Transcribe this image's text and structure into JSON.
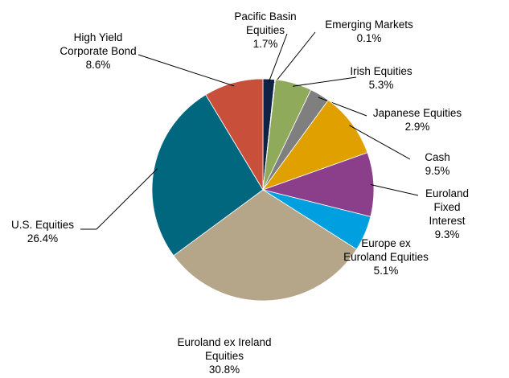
{
  "chart_data": {
    "type": "pie",
    "categories": [
      "Pacific Basin\nEquities",
      "Emerging Markets",
      "Irish Equities",
      "Japanese Equities",
      "Cash",
      "Euroland Fixed\nInterest",
      "Europe ex\nEuroland Equities",
      "Euroland ex Ireland\nEquities",
      "U.S. Equities",
      "High Yield\nCorporate Bond"
    ],
    "values": [
      1.7,
      0.1,
      5.3,
      2.9,
      9.5,
      9.3,
      5.1,
      30.8,
      26.4,
      8.6
    ],
    "value_labels": [
      "1.7%",
      "0.1%",
      "5.3%",
      "2.9%",
      "9.5%",
      "9.3%",
      "5.1%",
      "30.8%",
      "26.4%",
      "8.6%"
    ],
    "colors": [
      "#0f2346",
      "#5a7a9a",
      "#8faa5a",
      "#7f7f7f",
      "#e0a000",
      "#8b3f8b",
      "#00a0e0",
      "#b5a68a",
      "#00677f",
      "#c8503a"
    ]
  }
}
